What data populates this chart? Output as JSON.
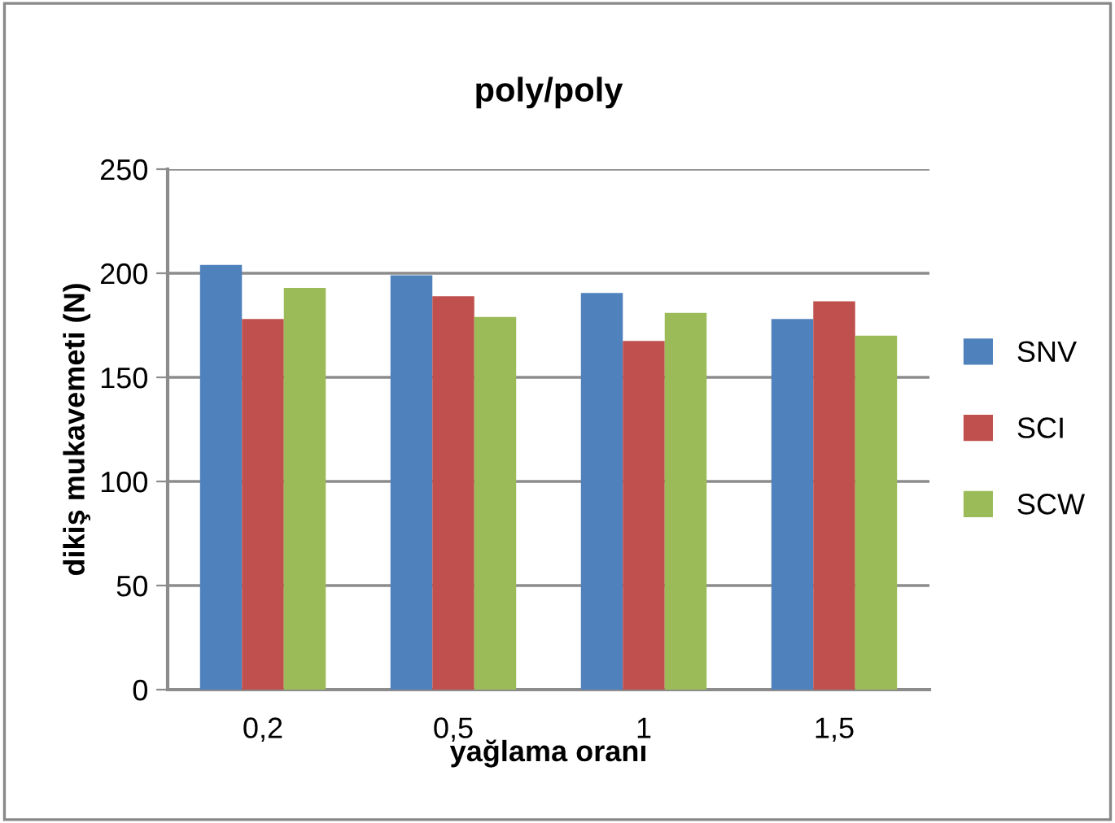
{
  "chart_data": {
    "type": "bar",
    "title": "poly/poly",
    "xlabel": "yağlama oranı",
    "ylabel": "dikiş mukavemeti (N)",
    "categories": [
      "0,2",
      "0,5",
      "1",
      "1,5"
    ],
    "series": [
      {
        "name": "SNV",
        "color": "#4f81bd",
        "values": [
          204,
          199,
          190.5,
          178
        ]
      },
      {
        "name": "SCI",
        "color": "#c0504d",
        "values": [
          178,
          189,
          167.5,
          186.5
        ]
      },
      {
        "name": "SCW",
        "color": "#9bbb59",
        "values": [
          193,
          179,
          181,
          170
        ]
      }
    ],
    "ylim": [
      0,
      250
    ],
    "yticks": [
      0,
      50,
      100,
      150,
      200,
      250
    ],
    "grid": "y",
    "legend": "right"
  }
}
